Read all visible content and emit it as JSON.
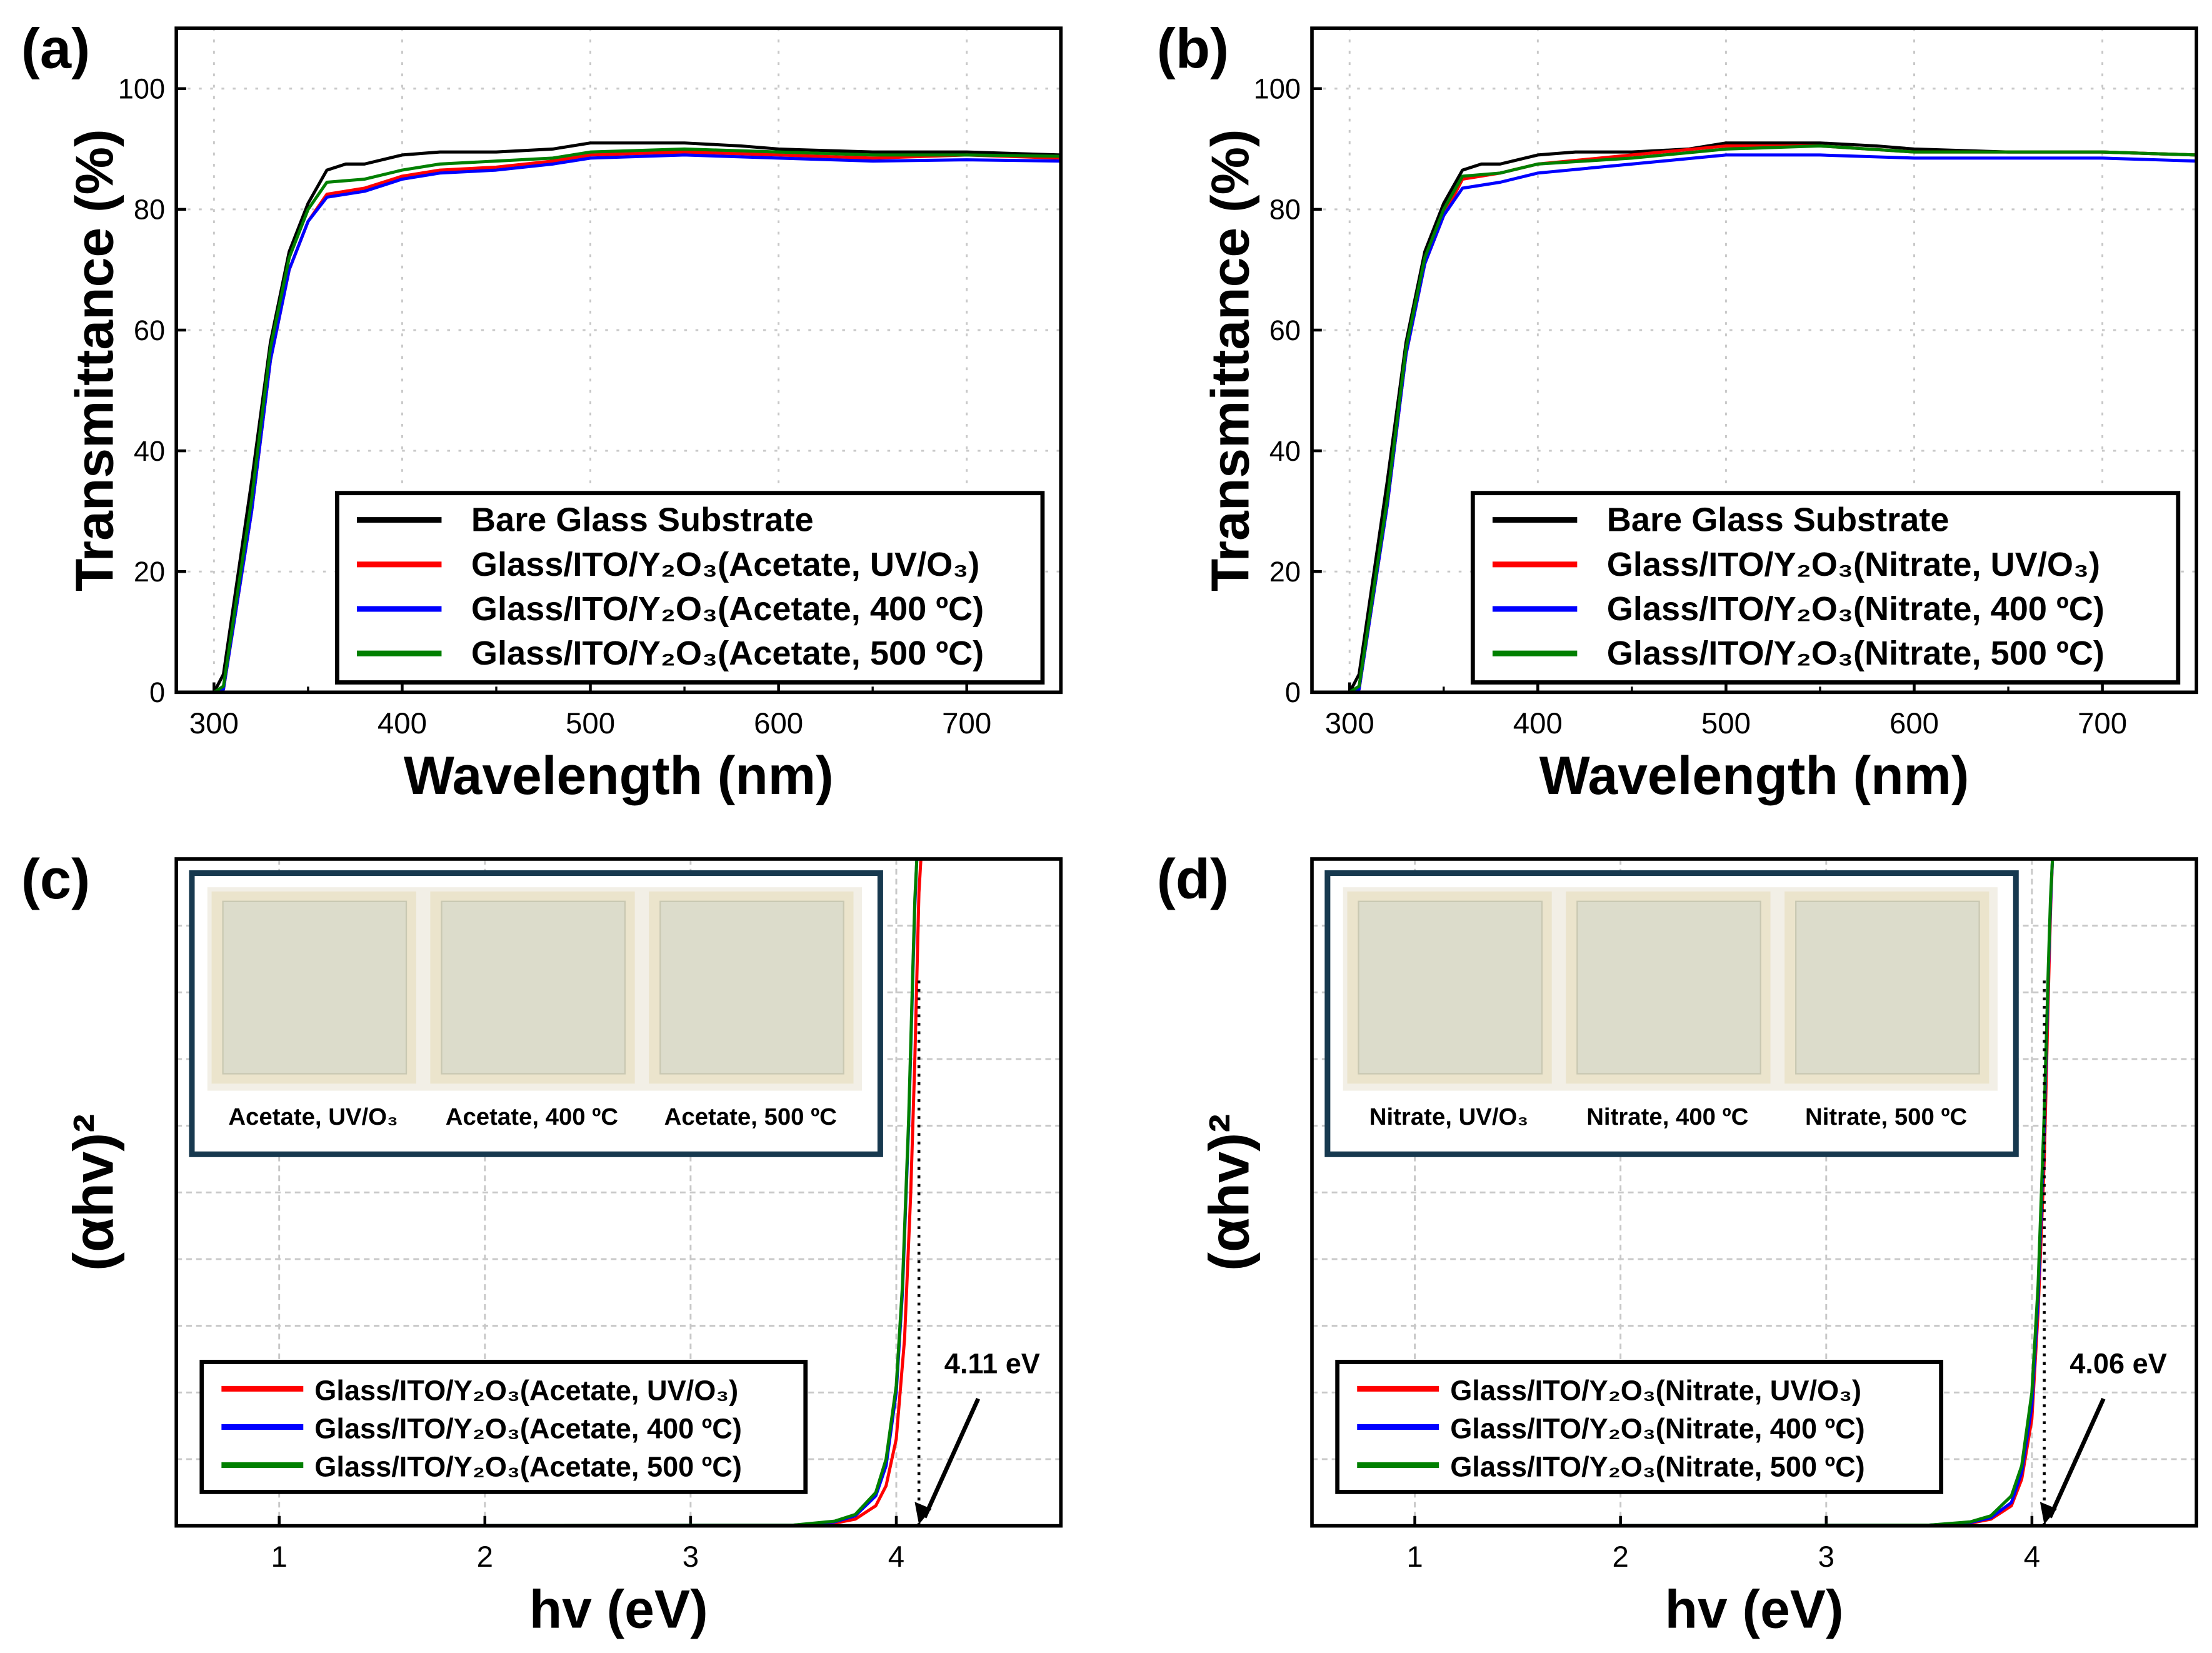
{
  "chart_data": [
    {
      "panel": "(a)",
      "type": "line",
      "xlabel": "Wavelength (nm)",
      "ylabel": "Transmittance (%)",
      "xlim": [
        280,
        750
      ],
      "ylim": [
        0,
        110
      ],
      "xticks": [
        300,
        400,
        500,
        600,
        700
      ],
      "yticks": [
        0,
        20,
        40,
        60,
        80,
        100
      ],
      "grid": true,
      "legend_position": "bottom-right",
      "series": [
        {
          "name": "Bare Glass Substrate",
          "color": "#000000",
          "x": [
            280,
            300,
            305,
            320,
            330,
            340,
            350,
            360,
            370,
            380,
            400,
            420,
            450,
            480,
            500,
            520,
            550,
            580,
            600,
            650,
            700,
            750
          ],
          "y": [
            0,
            0,
            3,
            35,
            58,
            73,
            81,
            86.5,
            87.5,
            87.5,
            89,
            89.5,
            89.5,
            90,
            91,
            91,
            91,
            90.5,
            90,
            89.5,
            89.5,
            89
          ]
        },
        {
          "name": "Glass/ITO/Y₂O₃(Acetate, UV/O₃)",
          "color": "#ff0000",
          "x": [
            280,
            300,
            305,
            320,
            330,
            340,
            350,
            360,
            380,
            400,
            420,
            450,
            480,
            500,
            550,
            600,
            650,
            700,
            750
          ],
          "y": [
            0,
            0,
            0.5,
            30,
            55,
            70,
            78,
            82.5,
            83.5,
            85.5,
            86.5,
            87,
            88,
            89,
            89.5,
            89,
            88.5,
            89,
            88.5
          ]
        },
        {
          "name": "Glass/ITO/Y₂O₃(Acetate, 400 ºC)",
          "color": "#0000ff",
          "x": [
            280,
            300,
            305,
            320,
            330,
            340,
            350,
            360,
            380,
            400,
            420,
            450,
            480,
            500,
            550,
            600,
            650,
            700,
            750
          ],
          "y": [
            0,
            0,
            0.5,
            30,
            55,
            70,
            78,
            82,
            83,
            85,
            86,
            86.5,
            87.5,
            88.5,
            89,
            88.5,
            88,
            88.2,
            88
          ]
        },
        {
          "name": "Glass/ITO/Y₂O₃(Acetate, 500 ºC)",
          "color": "#008000",
          "x": [
            280,
            300,
            305,
            320,
            330,
            340,
            350,
            360,
            380,
            400,
            420,
            450,
            480,
            500,
            550,
            600,
            650,
            700,
            750
          ],
          "y": [
            0,
            0,
            1,
            32,
            57,
            72,
            80,
            84.5,
            85,
            86.5,
            87.5,
            88,
            88.5,
            89.5,
            90,
            89.5,
            89,
            89,
            88.8
          ]
        }
      ]
    },
    {
      "panel": "(b)",
      "type": "line",
      "xlabel": "Wavelength (nm)",
      "ylabel": "Transmittance (%)",
      "xlim": [
        280,
        750
      ],
      "ylim": [
        0,
        110
      ],
      "xticks": [
        300,
        400,
        500,
        600,
        700
      ],
      "yticks": [
        0,
        20,
        40,
        60,
        80,
        100
      ],
      "grid": true,
      "legend_position": "bottom-right",
      "series": [
        {
          "name": "Bare Glass Substrate",
          "color": "#000000",
          "x": [
            280,
            300,
            305,
            320,
            330,
            340,
            350,
            360,
            370,
            380,
            400,
            420,
            450,
            480,
            500,
            520,
            550,
            580,
            600,
            650,
            700,
            750
          ],
          "y": [
            0,
            0,
            3,
            35,
            58,
            73,
            81,
            86.5,
            87.5,
            87.5,
            89,
            89.5,
            89.5,
            90,
            91,
            91,
            91,
            90.5,
            90,
            89.5,
            89.5,
            89
          ]
        },
        {
          "name": "Glass/ITO/Y₂O₃(Nitrate, UV/O₃)",
          "color": "#ff0000",
          "x": [
            280,
            300,
            305,
            320,
            330,
            340,
            350,
            360,
            380,
            400,
            450,
            500,
            550,
            600,
            700,
            750
          ],
          "y": [
            0,
            0,
            0.5,
            31,
            56,
            71,
            79,
            85,
            86,
            87.5,
            89,
            90.5,
            90.5,
            89.5,
            89.5,
            89
          ]
        },
        {
          "name": "Glass/ITO/Y₂O₃(Nitrate, 400 ºC)",
          "color": "#0000ff",
          "x": [
            280,
            300,
            305,
            320,
            330,
            340,
            350,
            360,
            380,
            400,
            450,
            500,
            550,
            600,
            700,
            750
          ],
          "y": [
            0,
            0,
            0.5,
            31,
            56,
            71,
            79,
            83.5,
            84.5,
            86,
            87.5,
            89,
            89,
            88.5,
            88.5,
            88
          ]
        },
        {
          "name": "Glass/ITO/Y₂O₃(Nitrate, 500 ºC)",
          "color": "#008000",
          "x": [
            280,
            300,
            305,
            320,
            330,
            340,
            350,
            360,
            380,
            400,
            450,
            500,
            550,
            600,
            700,
            750
          ],
          "y": [
            0,
            0,
            1,
            32,
            57,
            72,
            80,
            85.5,
            86,
            87.5,
            88.5,
            90,
            90.5,
            89.5,
            89.5,
            89
          ]
        }
      ]
    },
    {
      "panel": "(c)",
      "type": "line",
      "xlabel": "hv (eV)",
      "ylabel": "(αhv)²",
      "xlim": [
        0.5,
        4.8
      ],
      "ylim": [
        0,
        1
      ],
      "xticks": [
        1,
        2,
        3,
        4
      ],
      "yticks": [],
      "grid": true,
      "legend_position": "bottom-left",
      "band_gap": {
        "label": "4.11 eV",
        "value": 4.11
      },
      "inset_labels": [
        "Acetate, UV/O₃",
        "Acetate, 400 ºC",
        "Acetate, 500 ºC"
      ],
      "series": [
        {
          "name": "Glass/ITO/Y₂O₃(Acetate, UV/O₃)",
          "color": "#ff0000",
          "x": [
            1.1,
            3.5,
            3.7,
            3.8,
            3.9,
            3.95,
            4.0,
            4.04,
            4.07,
            4.09,
            4.11,
            4.12
          ],
          "y": [
            0,
            0.001,
            0.004,
            0.01,
            0.03,
            0.06,
            0.13,
            0.28,
            0.5,
            0.7,
            0.95,
            1.0
          ]
        },
        {
          "name": "Glass/ITO/Y₂O₃(Acetate, 400 ºC)",
          "color": "#0000ff",
          "x": [
            1.1,
            3.5,
            3.7,
            3.8,
            3.9,
            3.95,
            4.0,
            4.03,
            4.06,
            4.08,
            4.09,
            4.1
          ],
          "y": [
            0,
            0.001,
            0.006,
            0.015,
            0.045,
            0.09,
            0.2,
            0.35,
            0.6,
            0.82,
            0.93,
            1.0
          ]
        },
        {
          "name": "Glass/ITO/Y₂O₃(Acetate, 500 ºC)",
          "color": "#008000",
          "x": [
            1.1,
            3.5,
            3.7,
            3.8,
            3.9,
            3.95,
            4.0,
            4.03,
            4.06,
            4.08,
            4.09,
            4.1
          ],
          "y": [
            0,
            0.001,
            0.007,
            0.017,
            0.05,
            0.1,
            0.21,
            0.36,
            0.61,
            0.83,
            0.94,
            1.0
          ]
        }
      ]
    },
    {
      "panel": "(d)",
      "type": "line",
      "xlabel": "hv (eV)",
      "ylabel": "(αhv)²",
      "xlim": [
        0.5,
        4.8
      ],
      "ylim": [
        0,
        1
      ],
      "xticks": [
        1,
        2,
        3,
        4
      ],
      "yticks": [],
      "grid": true,
      "legend_position": "bottom-left",
      "band_gap": {
        "label": "4.06 eV",
        "value": 4.06
      },
      "inset_labels": [
        "Nitrate, UV/O₃",
        "Nitrate, 400 ºC",
        "Nitrate, 500 ºC"
      ],
      "series": [
        {
          "name": "Glass/ITO/Y₂O₃(Nitrate, UV/O₃)",
          "color": "#ff0000",
          "x": [
            1.1,
            3.5,
            3.7,
            3.8,
            3.9,
            3.95,
            4.0,
            4.03,
            4.06,
            4.08,
            4.09,
            4.1
          ],
          "y": [
            0,
            0.001,
            0.004,
            0.01,
            0.03,
            0.07,
            0.16,
            0.32,
            0.55,
            0.8,
            0.92,
            1.0
          ]
        },
        {
          "name": "Glass/ITO/Y₂O₃(Nitrate, 400 ºC)",
          "color": "#0000ff",
          "x": [
            1.1,
            3.5,
            3.7,
            3.8,
            3.9,
            3.95,
            4.0,
            4.03,
            4.06,
            4.08,
            4.09,
            4.1
          ],
          "y": [
            0,
            0.001,
            0.005,
            0.012,
            0.035,
            0.08,
            0.18,
            0.34,
            0.6,
            0.83,
            0.93,
            1.0
          ]
        },
        {
          "name": "Glass/ITO/Y₂O₃(Nitrate, 500 ºC)",
          "color": "#008000",
          "x": [
            1.1,
            3.5,
            3.7,
            3.8,
            3.9,
            3.95,
            4.0,
            4.03,
            4.06,
            4.08,
            4.09,
            4.1
          ],
          "y": [
            0,
            0.001,
            0.006,
            0.015,
            0.045,
            0.09,
            0.2,
            0.36,
            0.62,
            0.84,
            0.94,
            1.0
          ]
        }
      ]
    }
  ]
}
